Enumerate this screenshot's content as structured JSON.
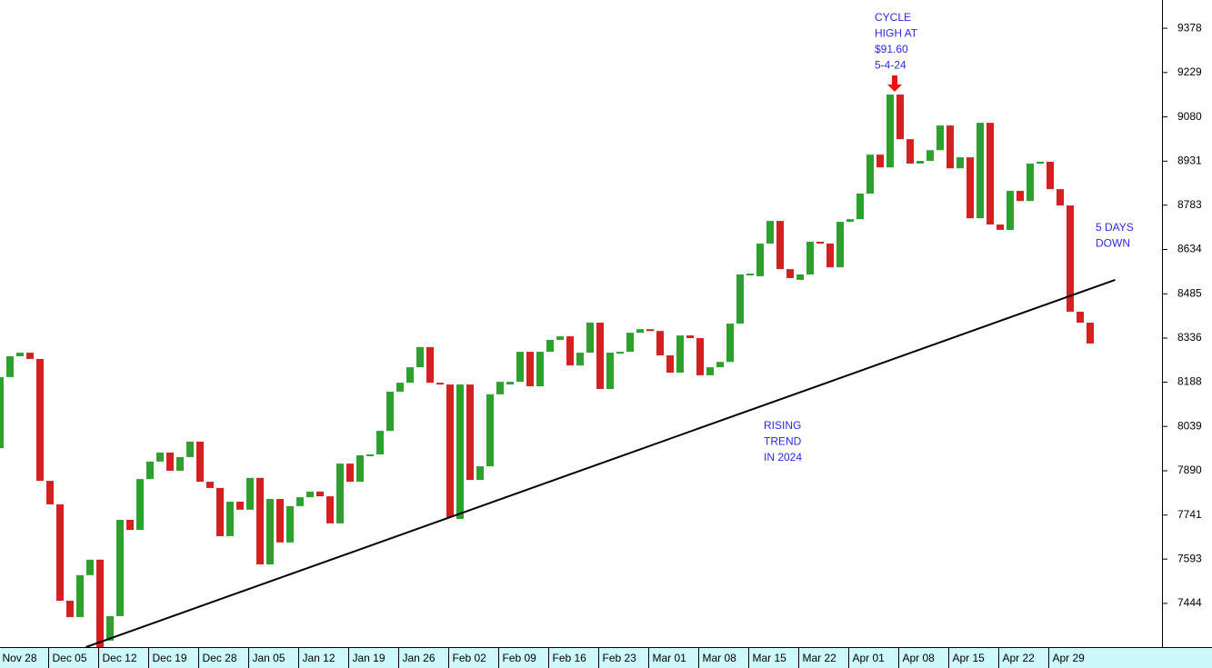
{
  "chart_data": {
    "type": "candlestick",
    "categories": [
      "Nov 28",
      null,
      null,
      null,
      null,
      "Dec 05",
      null,
      null,
      null,
      null,
      "Dec 12",
      null,
      null,
      null,
      null,
      "Dec 19",
      null,
      null,
      null,
      null,
      "Dec 28",
      null,
      null,
      null,
      null,
      "Jan 05",
      null,
      null,
      null,
      null,
      "Jan 12",
      null,
      null,
      null,
      null,
      "Jan 19",
      null,
      null,
      null,
      null,
      "Jan 26",
      null,
      null,
      null,
      null,
      "Feb 02",
      null,
      null,
      null,
      null,
      "Feb 09",
      null,
      null,
      null,
      null,
      "Feb 16",
      null,
      null,
      null,
      null,
      "Feb 23",
      null,
      null,
      null,
      null,
      "Mar 01",
      null,
      null,
      null,
      null,
      "Mar 08",
      null,
      null,
      null,
      null,
      "Mar 15",
      null,
      null,
      null,
      null,
      "Mar 22",
      null,
      null,
      null,
      null,
      "Apr 01",
      null,
      null,
      null,
      null,
      "Apr 08",
      null,
      null,
      null,
      null,
      "Apr 15",
      null,
      null,
      null,
      null,
      "Apr 22",
      null,
      null,
      null,
      null,
      "Apr 29",
      null,
      null,
      null,
      null
    ],
    "open": [
      7966,
      8205,
      8275,
      8287,
      8266,
      7856,
      7777,
      7453,
      7398,
      7539,
      7591,
      7319,
      7401,
      7725,
      7691,
      7862,
      7921,
      7951,
      7890,
      7936,
      7988,
      7853,
      7832,
      7670,
      7786,
      7759,
      7866,
      7575,
      7795,
      7649,
      7771,
      7801,
      7820,
      7804,
      7713,
      7914,
      7853,
      7942,
      7945,
      8024,
      8156,
      8186,
      8238,
      8306,
      8186,
      8180,
      7728,
      8180,
      7859,
      7905,
      8147,
      8180,
      8189,
      8290,
      8174,
      8290,
      8330,
      8342,
      8244,
      8287,
      8388,
      8165,
      8287,
      8290,
      8354,
      8366,
      8360,
      8278,
      8220,
      8345,
      8336,
      8211,
      8238,
      8256,
      8385,
      8550,
      8544,
      8654,
      8730,
      8568,
      8532,
      8550,
      8660,
      8654,
      8574,
      8727,
      8736,
      8822,
      8953,
      8910,
      9155,
      9005,
      8923,
      8932,
      8968,
      9051,
      8907,
      8944,
      8739,
      9060,
      8718,
      8700,
      8831,
      8797,
      8923,
      8929,
      8837,
      8782,
      8425,
      8388
    ],
    "close": [
      8205,
      8275,
      8287,
      8266,
      7856,
      7777,
      7453,
      7398,
      7539,
      7591,
      7297,
      7401,
      7725,
      7691,
      7862,
      7921,
      7951,
      7890,
      7936,
      7988,
      7853,
      7832,
      7670,
      7786,
      7759,
      7866,
      7575,
      7795,
      7649,
      7771,
      7801,
      7820,
      7804,
      7713,
      7914,
      7853,
      7942,
      7945,
      8024,
      8156,
      8186,
      8238,
      8306,
      8186,
      8180,
      7734,
      8180,
      7859,
      7905,
      8147,
      8189,
      8189,
      8290,
      8174,
      8290,
      8330,
      8342,
      8244,
      8287,
      8388,
      8165,
      8287,
      8290,
      8354,
      8366,
      8360,
      8278,
      8220,
      8345,
      8336,
      8211,
      8238,
      8256,
      8385,
      8550,
      8553,
      8654,
      8730,
      8568,
      8538,
      8550,
      8660,
      8654,
      8574,
      8727,
      8736,
      8822,
      8953,
      8910,
      9155,
      9005,
      8923,
      8932,
      8968,
      9051,
      8907,
      8944,
      8739,
      9060,
      8718,
      8700,
      8831,
      8797,
      8923,
      8929,
      8837,
      8782,
      8425,
      8388,
      8318
    ],
    "up_color": "#2ea02e",
    "down_color": "#d42020",
    "ylim": [
      7297,
      9473
    ],
    "yticks": [
      7444,
      7593,
      7741,
      7890,
      8039,
      8188,
      8336,
      8485,
      8634,
      8783,
      8931,
      9080,
      9229,
      9378
    ],
    "trend_line": {
      "x": [
        8.6,
        111.5
      ],
      "values": [
        7297,
        8532
      ],
      "color": "#000000"
    },
    "annotations": [
      {
        "lines": [
          "CYCLE",
          "HIGH AT",
          "$91.60",
          "5-4-24"
        ],
        "color": "#2a2ae8"
      },
      {
        "lines": [
          "5 DAYS",
          "DOWN"
        ],
        "color": "#2a2ae8"
      },
      {
        "lines": [
          "RISING",
          "TREND",
          "IN 2024"
        ],
        "color": "#2a2ae8"
      }
    ]
  }
}
